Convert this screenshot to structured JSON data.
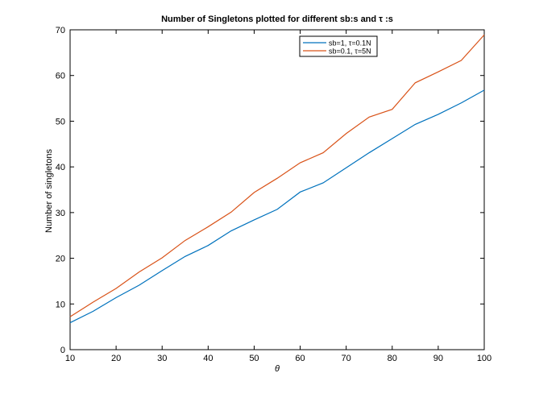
{
  "chart_data": {
    "type": "line",
    "title": "Number of Singletons plotted for different sb:s and τ :s",
    "xlabel": "θ",
    "ylabel": "Number of singletons",
    "xlim": [
      10,
      100
    ],
    "ylim": [
      0,
      70
    ],
    "xticks": [
      10,
      20,
      30,
      40,
      50,
      60,
      70,
      80,
      90,
      100
    ],
    "yticks": [
      0,
      10,
      20,
      30,
      40,
      50,
      60,
      70
    ],
    "grid": false,
    "legend_position": "top-right",
    "x": [
      10,
      15,
      20,
      25,
      30,
      35,
      40,
      45,
      50,
      55,
      60,
      65,
      70,
      75,
      80,
      85,
      90,
      95,
      100
    ],
    "series": [
      {
        "name": "sb=1, τ=0.1N",
        "color": "#0072bd",
        "values": [
          5.9,
          8.4,
          11.4,
          14.1,
          17.3,
          20.4,
          22.8,
          26.0,
          28.4,
          30.7,
          34.5,
          36.5,
          39.8,
          43.1,
          46.2,
          49.3,
          51.5,
          54.0,
          56.8
        ]
      },
      {
        "name": "sb=0.1, τ=5N",
        "color": "#d95319",
        "values": [
          7.2,
          10.4,
          13.4,
          17.0,
          20.1,
          23.9,
          26.9,
          30.1,
          34.4,
          37.5,
          40.9,
          43.1,
          47.3,
          50.9,
          52.6,
          58.4,
          60.8,
          63.3,
          68.9
        ]
      }
    ]
  }
}
